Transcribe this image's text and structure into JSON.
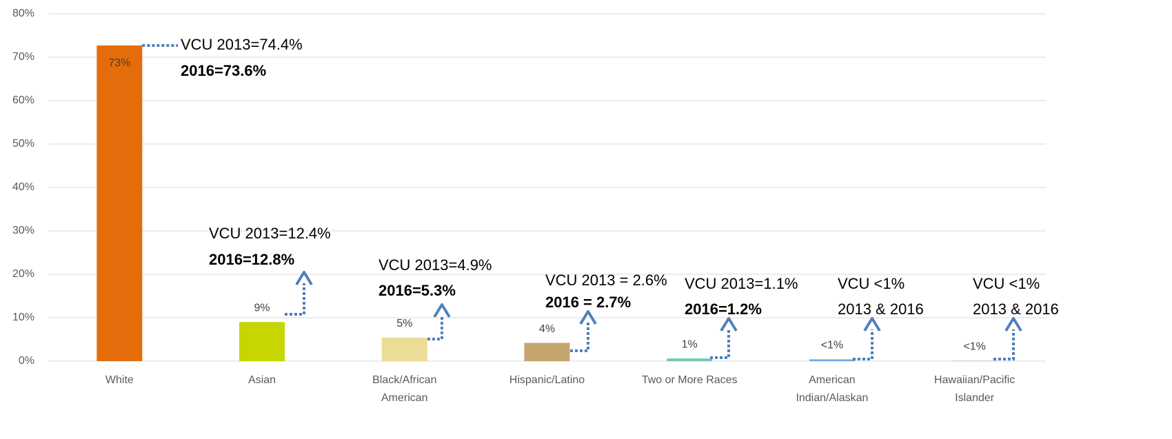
{
  "chart_data": {
    "type": "bar",
    "categories": [
      "White",
      "Asian",
      "Black/African American",
      "Hispanic/Latino",
      "Two or More Races",
      "American Indian/Alaskan",
      "Hawaiian/Pacific Islander"
    ],
    "values": [
      72.7,
      9,
      5.4,
      4.2,
      0.6,
      0.4,
      0.1
    ],
    "value_labels": [
      "73%",
      "9%",
      "5%",
      "4%",
      "1%",
      "<1%",
      "<1%"
    ],
    "colors": [
      "#e46c0a",
      "#c5d600",
      "#ebdc96",
      "#c5a46e",
      "#70c6b4",
      "#6fa8dc",
      "#9ab8d8"
    ],
    "ylim": [
      0,
      80
    ],
    "yticks": [
      {
        "value": 0,
        "label": "0%"
      },
      {
        "value": 10,
        "label": "10%"
      },
      {
        "value": 20,
        "label": "20%"
      },
      {
        "value": 30,
        "label": "30%"
      },
      {
        "value": 40,
        "label": "40%"
      },
      {
        "value": 50,
        "label": "50%"
      },
      {
        "value": 60,
        "label": "60%"
      },
      {
        "value": 70,
        "label": "70%"
      },
      {
        "value": 80,
        "label": "80%"
      }
    ],
    "grid": true,
    "annotations": [
      {
        "line1": "VCU 2013=74.4%",
        "line2": "2016=73.6%",
        "line2_bold": true
      },
      {
        "line1": "VCU 2013=12.4%",
        "line2": "2016=12.8%",
        "line2_bold": true
      },
      {
        "line1": "VCU 2013=4.9%",
        "line2": "2016=5.3%",
        "line2_bold": true
      },
      {
        "line1": "VCU 2013 = 2.6%",
        "line2": "2016 = 2.7%",
        "line2_bold": true
      },
      {
        "line1": "VCU 2013=1.1%",
        "line2": "2016=1.2%",
        "line2_bold": true
      },
      {
        "line1": "VCU <1%",
        "line2": "2013 & 2016",
        "line2_bold": false
      },
      {
        "line1": "VCU <1%",
        "line2": "2013 & 2016",
        "line2_bold": false
      }
    ]
  }
}
